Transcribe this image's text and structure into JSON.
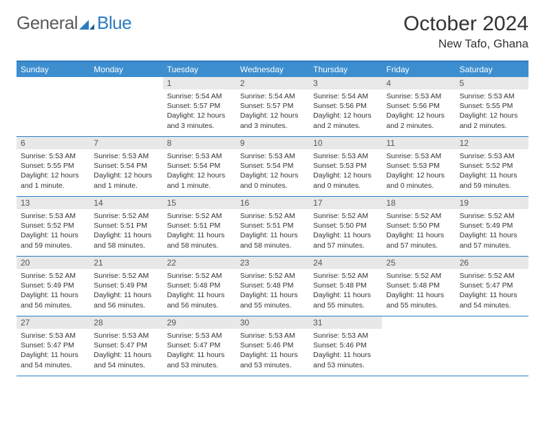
{
  "brand": {
    "part1": "General",
    "part2": "Blue"
  },
  "title": "October 2024",
  "location": "New Tafo, Ghana",
  "colors": {
    "header_bg": "#3d8ecf",
    "border": "#2b7bbf",
    "daynum_bg": "#e8e8e8",
    "text": "#333333",
    "logo_gray": "#595959",
    "logo_blue": "#2b7bbf"
  },
  "day_names": [
    "Sunday",
    "Monday",
    "Tuesday",
    "Wednesday",
    "Thursday",
    "Friday",
    "Saturday"
  ],
  "weeks": [
    [
      null,
      null,
      {
        "n": "1",
        "sr": "5:54 AM",
        "ss": "5:57 PM",
        "dl": "12 hours and 3 minutes."
      },
      {
        "n": "2",
        "sr": "5:54 AM",
        "ss": "5:57 PM",
        "dl": "12 hours and 3 minutes."
      },
      {
        "n": "3",
        "sr": "5:54 AM",
        "ss": "5:56 PM",
        "dl": "12 hours and 2 minutes."
      },
      {
        "n": "4",
        "sr": "5:53 AM",
        "ss": "5:56 PM",
        "dl": "12 hours and 2 minutes."
      },
      {
        "n": "5",
        "sr": "5:53 AM",
        "ss": "5:55 PM",
        "dl": "12 hours and 2 minutes."
      }
    ],
    [
      {
        "n": "6",
        "sr": "5:53 AM",
        "ss": "5:55 PM",
        "dl": "12 hours and 1 minute."
      },
      {
        "n": "7",
        "sr": "5:53 AM",
        "ss": "5:54 PM",
        "dl": "12 hours and 1 minute."
      },
      {
        "n": "8",
        "sr": "5:53 AM",
        "ss": "5:54 PM",
        "dl": "12 hours and 1 minute."
      },
      {
        "n": "9",
        "sr": "5:53 AM",
        "ss": "5:54 PM",
        "dl": "12 hours and 0 minutes."
      },
      {
        "n": "10",
        "sr": "5:53 AM",
        "ss": "5:53 PM",
        "dl": "12 hours and 0 minutes."
      },
      {
        "n": "11",
        "sr": "5:53 AM",
        "ss": "5:53 PM",
        "dl": "12 hours and 0 minutes."
      },
      {
        "n": "12",
        "sr": "5:53 AM",
        "ss": "5:52 PM",
        "dl": "11 hours and 59 minutes."
      }
    ],
    [
      {
        "n": "13",
        "sr": "5:53 AM",
        "ss": "5:52 PM",
        "dl": "11 hours and 59 minutes."
      },
      {
        "n": "14",
        "sr": "5:52 AM",
        "ss": "5:51 PM",
        "dl": "11 hours and 58 minutes."
      },
      {
        "n": "15",
        "sr": "5:52 AM",
        "ss": "5:51 PM",
        "dl": "11 hours and 58 minutes."
      },
      {
        "n": "16",
        "sr": "5:52 AM",
        "ss": "5:51 PM",
        "dl": "11 hours and 58 minutes."
      },
      {
        "n": "17",
        "sr": "5:52 AM",
        "ss": "5:50 PM",
        "dl": "11 hours and 57 minutes."
      },
      {
        "n": "18",
        "sr": "5:52 AM",
        "ss": "5:50 PM",
        "dl": "11 hours and 57 minutes."
      },
      {
        "n": "19",
        "sr": "5:52 AM",
        "ss": "5:49 PM",
        "dl": "11 hours and 57 minutes."
      }
    ],
    [
      {
        "n": "20",
        "sr": "5:52 AM",
        "ss": "5:49 PM",
        "dl": "11 hours and 56 minutes."
      },
      {
        "n": "21",
        "sr": "5:52 AM",
        "ss": "5:49 PM",
        "dl": "11 hours and 56 minutes."
      },
      {
        "n": "22",
        "sr": "5:52 AM",
        "ss": "5:48 PM",
        "dl": "11 hours and 56 minutes."
      },
      {
        "n": "23",
        "sr": "5:52 AM",
        "ss": "5:48 PM",
        "dl": "11 hours and 55 minutes."
      },
      {
        "n": "24",
        "sr": "5:52 AM",
        "ss": "5:48 PM",
        "dl": "11 hours and 55 minutes."
      },
      {
        "n": "25",
        "sr": "5:52 AM",
        "ss": "5:48 PM",
        "dl": "11 hours and 55 minutes."
      },
      {
        "n": "26",
        "sr": "5:52 AM",
        "ss": "5:47 PM",
        "dl": "11 hours and 54 minutes."
      }
    ],
    [
      {
        "n": "27",
        "sr": "5:53 AM",
        "ss": "5:47 PM",
        "dl": "11 hours and 54 minutes."
      },
      {
        "n": "28",
        "sr": "5:53 AM",
        "ss": "5:47 PM",
        "dl": "11 hours and 54 minutes."
      },
      {
        "n": "29",
        "sr": "5:53 AM",
        "ss": "5:47 PM",
        "dl": "11 hours and 53 minutes."
      },
      {
        "n": "30",
        "sr": "5:53 AM",
        "ss": "5:46 PM",
        "dl": "11 hours and 53 minutes."
      },
      {
        "n": "31",
        "sr": "5:53 AM",
        "ss": "5:46 PM",
        "dl": "11 hours and 53 minutes."
      },
      null,
      null
    ]
  ],
  "labels": {
    "sunrise": "Sunrise:",
    "sunset": "Sunset:",
    "daylight": "Daylight:"
  }
}
